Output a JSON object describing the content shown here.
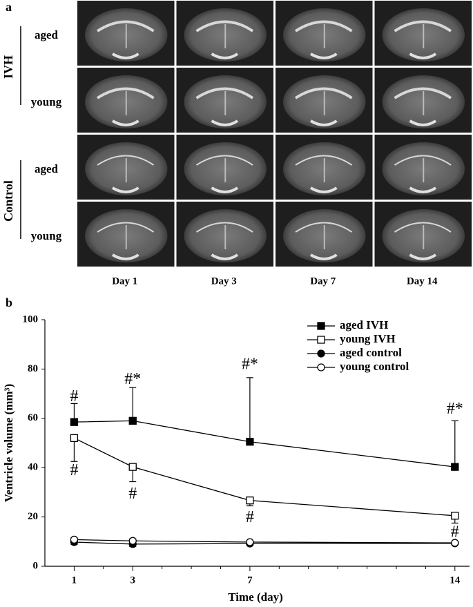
{
  "panel_a": {
    "label": "a",
    "groups": [
      {
        "name": "IVH",
        "rows": [
          "aged",
          "young"
        ]
      },
      {
        "name": "Control",
        "rows": [
          "aged",
          "young"
        ]
      }
    ],
    "columns": [
      "Day 1",
      "Day 3",
      "Day 7",
      "Day 14"
    ]
  },
  "panel_b": {
    "label": "b"
  },
  "chart_data": {
    "type": "line",
    "x_label": "Time (day)",
    "y_label": "Ventricle volume (mm³)",
    "xlim": [
      0,
      14.5
    ],
    "xticks": [
      1,
      3,
      7,
      14
    ],
    "x_minor_ticks": [
      2,
      4,
      5,
      6,
      8,
      9,
      10,
      11,
      12,
      13
    ],
    "ylim": [
      0,
      100
    ],
    "yticks": [
      0,
      20,
      40,
      60,
      80,
      100
    ],
    "grid": false,
    "legend": "upper right",
    "x": [
      1,
      3,
      7,
      14
    ],
    "series": [
      {
        "name": "aged IVH",
        "color": "#000000",
        "marker": "square",
        "marker_fill": "#000000",
        "values": [
          58.5,
          59,
          50.5,
          40.3
        ],
        "errors": [
          7.5,
          13.5,
          26,
          18.7
        ],
        "error_direction": "up"
      },
      {
        "name": "young IVH",
        "color": "#000000",
        "marker": "square",
        "marker_fill": "#ffffff",
        "values": [
          52,
          40.3,
          26.7,
          20.5
        ],
        "errors": [
          9.5,
          6,
          2.2,
          3
        ],
        "error_direction": "down"
      },
      {
        "name": "aged control",
        "color": "#000000",
        "marker": "circle",
        "marker_fill": "#000000",
        "values": [
          9.8,
          9,
          9.2,
          9.3
        ],
        "errors": [
          1,
          1,
          0.8,
          0.6
        ],
        "error_direction": "down"
      },
      {
        "name": "young control",
        "color": "#000000",
        "marker": "circle",
        "marker_fill": "#ffffff",
        "values": [
          10.8,
          10.3,
          9.8,
          9.5
        ],
        "errors": [
          0.8,
          0.8,
          0.6,
          0.5
        ],
        "error_direction": "up"
      }
    ],
    "annotations": [
      {
        "text": "#",
        "x": 1,
        "y": 68.5
      },
      {
        "text": "#",
        "x": 1,
        "y": 38.5
      },
      {
        "text": "#*",
        "x": 3,
        "y": 75.5
      },
      {
        "text": "#",
        "x": 3,
        "y": 29
      },
      {
        "text": "#*",
        "x": 7,
        "y": 81.5
      },
      {
        "text": "#",
        "x": 7,
        "y": 19.5
      },
      {
        "text": "#*",
        "x": 14,
        "y": 63.5
      },
      {
        "text": "#",
        "x": 14,
        "y": 13.5
      }
    ]
  }
}
